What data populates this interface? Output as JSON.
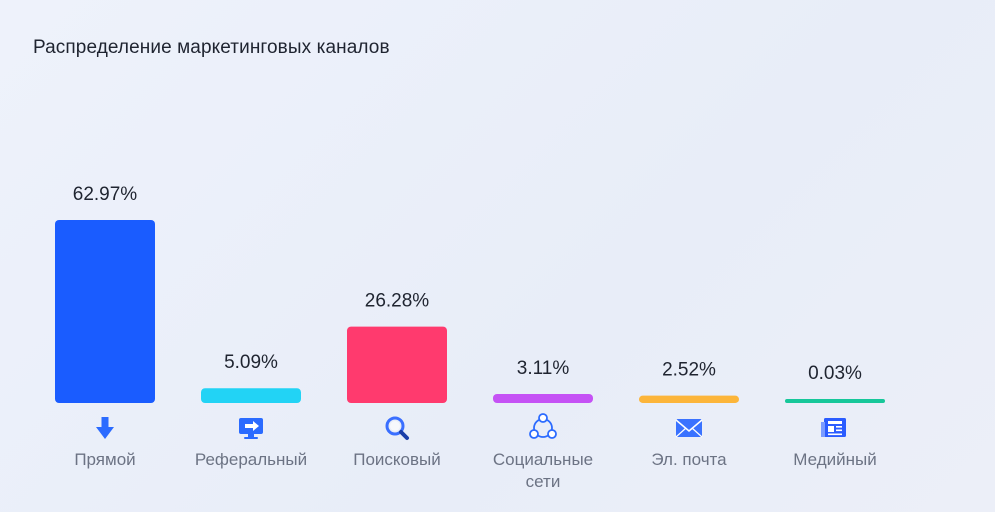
{
  "chart_data": {
    "type": "bar",
    "title": "Распределение маркетинговых каналов",
    "categories": [
      {
        "label_lines": [
          "Прямой"
        ],
        "icon": "arrow-down-icon"
      },
      {
        "label_lines": [
          "Реферальный"
        ],
        "icon": "monitor-arrow-icon"
      },
      {
        "label_lines": [
          "Поисковый"
        ],
        "icon": "magnifier-icon"
      },
      {
        "label_lines": [
          "Социальные",
          "сети"
        ],
        "icon": "social-network-icon"
      },
      {
        "label_lines": [
          "Эл. почта"
        ],
        "icon": "envelope-icon"
      },
      {
        "label_lines": [
          "Медийный"
        ],
        "icon": "media-newspaper-icon"
      }
    ],
    "values": [
      62.97,
      5.09,
      26.28,
      3.11,
      2.52,
      0.03
    ],
    "value_labels": [
      "62.97%",
      "5.09%",
      "26.28%",
      "3.11%",
      "2.52%",
      "0.03%"
    ],
    "colors": [
      "#1a5cff",
      "#22d3f5",
      "#ff3a6e",
      "#c552f5",
      "#fcb53a",
      "#17c79a"
    ],
    "ylim": [
      0,
      62.97
    ],
    "grid": false,
    "legend": "none"
  }
}
